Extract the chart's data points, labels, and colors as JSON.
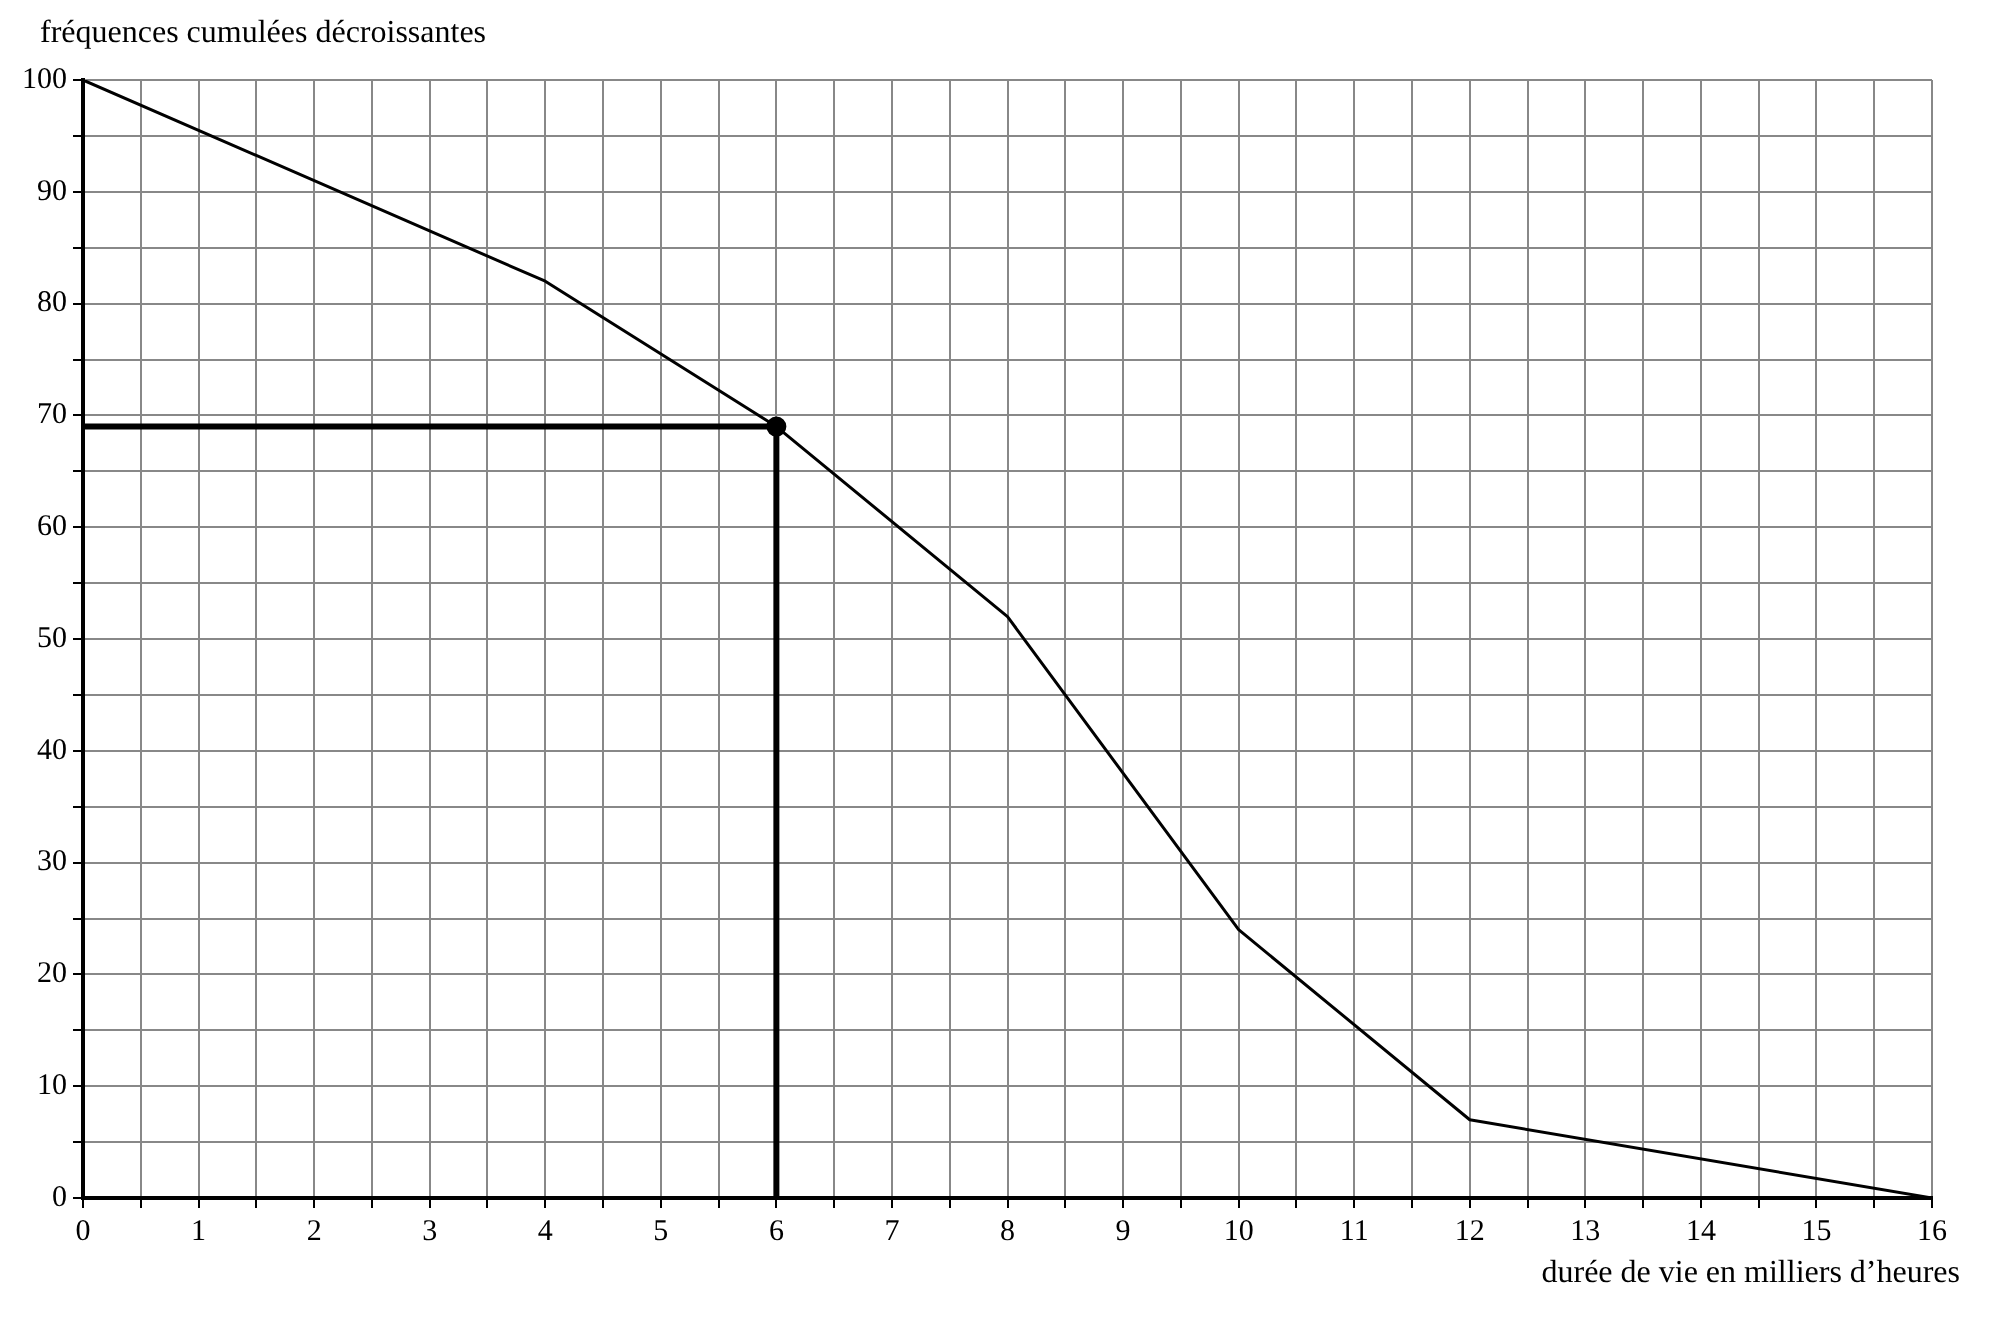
{
  "chart_data": {
    "type": "line",
    "ylabel": "fréquences cumulées décroissantes",
    "xlabel": "durée de vie en milliers d’heures",
    "series": [
      {
        "color": "#000000",
        "x": [
          0,
          4,
          6,
          8,
          10,
          12,
          16
        ],
        "values": [
          100,
          82,
          69,
          52,
          24,
          7,
          0
        ]
      },
      {
        "color": "#000000",
        "x": [
          0,
          6,
          6
        ],
        "values": [
          69,
          69,
          0
        ]
      },
      {
        "type": "scatter",
        "marker": "circle",
        "color": "#000000",
        "x": [
          6
        ],
        "values": [
          69
        ]
      }
    ],
    "xlim": [
      0,
      16
    ],
    "ylim": [
      0,
      100
    ],
    "xticks": [
      0,
      {
        "value": 0.5,
        "label": null
      },
      1,
      {
        "value": 1.5,
        "label": null
      },
      2,
      {
        "value": 2.5,
        "label": null
      },
      3,
      {
        "value": 3.5,
        "label": null
      },
      4,
      {
        "value": 4.5,
        "label": null
      },
      5,
      {
        "value": 5.5,
        "label": null
      },
      6,
      {
        "value": 6.5,
        "label": null
      },
      7,
      {
        "value": 7.5,
        "label": null
      },
      8,
      {
        "value": 8.5,
        "label": null
      },
      9,
      {
        "value": 9.5,
        "label": null
      },
      10,
      {
        "value": 10.5,
        "label": null
      },
      11,
      {
        "value": 11.5,
        "label": null
      },
      12,
      {
        "value": 12.5,
        "label": null
      },
      13,
      {
        "value": 13.5,
        "label": null
      },
      14,
      {
        "value": 14.5,
        "label": null
      },
      15,
      {
        "value": 15.5,
        "label": null
      },
      16
    ],
    "yticks": [
      0,
      {
        "value": 5,
        "label": null
      },
      10,
      {
        "value": 15,
        "label": null
      },
      20,
      {
        "value": 25,
        "label": null
      },
      30,
      {
        "value": 35,
        "label": null
      },
      40,
      {
        "value": 45,
        "label": null
      },
      50,
      {
        "value": 55,
        "label": null
      },
      60,
      {
        "value": 65,
        "label": null
      },
      70,
      {
        "value": 75,
        "label": null
      },
      80,
      {
        "value": 85,
        "label": null
      },
      90,
      {
        "value": 95,
        "label": null
      },
      100
    ],
    "grid": true,
    "legend": false,
    "marker": "none"
  }
}
